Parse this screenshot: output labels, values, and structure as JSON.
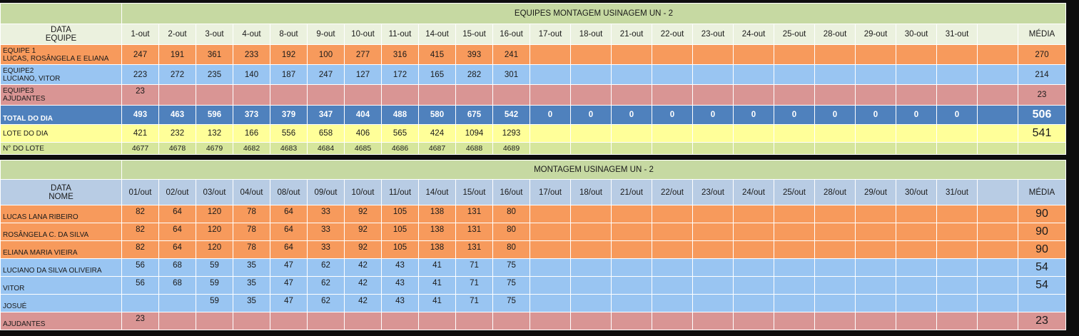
{
  "table1": {
    "title": "EQUIPES MONTAGEM USINAGEM UN - 2",
    "header_label": [
      "DATA",
      "EQUIPE"
    ],
    "dates": [
      "1-out",
      "2-out",
      "3-out",
      "4-out",
      "8-out",
      "9-out",
      "10-out",
      "11-out",
      "14-out",
      "15-out",
      "16-out",
      "17-out",
      "18-out",
      "21-out",
      "22-out",
      "23-out",
      "24-out",
      "25-out",
      "28-out",
      "29-out",
      "30-out",
      "31-out",
      ""
    ],
    "avg_label": "MÉDIA",
    "rows": [
      {
        "label": [
          "EQUIPE 1",
          "LUCAS, ROSÂNGELA E ELIANA"
        ],
        "values": [
          "247",
          "191",
          "361",
          "233",
          "192",
          "100",
          "277",
          "316",
          "415",
          "393",
          "241",
          "",
          "",
          "",
          "",
          "",
          "",
          "",
          "",
          "",
          "",
          "",
          ""
        ],
        "avg": "270"
      },
      {
        "label": [
          "EQUIPE2",
          "LUCIANO, VITOR"
        ],
        "values": [
          "223",
          "272",
          "235",
          "140",
          "187",
          "247",
          "127",
          "172",
          "165",
          "282",
          "301",
          "",
          "",
          "",
          "",
          "",
          "",
          "",
          "",
          "",
          "",
          "",
          ""
        ],
        "avg": "214"
      },
      {
        "label": [
          "EQUIPE3",
          "AJUDANTES"
        ],
        "values": [
          "23",
          "",
          "",
          "",
          "",
          "",
          "",
          "",
          "",
          "",
          "",
          "",
          "",
          "",
          "",
          "",
          "",
          "",
          "",
          "",
          "",
          "",
          ""
        ],
        "avg": "23"
      }
    ],
    "total": {
      "label": "TOTAL DO DIA",
      "values": [
        "493",
        "463",
        "596",
        "373",
        "379",
        "347",
        "404",
        "488",
        "580",
        "675",
        "542",
        "0",
        "0",
        "0",
        "0",
        "0",
        "0",
        "0",
        "0",
        "0",
        "0",
        "0",
        ""
      ],
      "avg": "506"
    },
    "lote": {
      "label": "LOTE DO DIA",
      "values": [
        "421",
        "232",
        "132",
        "166",
        "556",
        "658",
        "406",
        "565",
        "424",
        "1094",
        "1293",
        "",
        "",
        "",
        "",
        "",
        "",
        "",
        "",
        "",
        "",
        "",
        ""
      ],
      "avg": "541"
    },
    "n_lote": {
      "label": "N° DO LOTE",
      "values": [
        "4677",
        "4678",
        "4679",
        "4682",
        "4683",
        "4684",
        "4685",
        "4686",
        "4687",
        "4688",
        "4689",
        "",
        "",
        "",
        "",
        "",
        "",
        "",
        "",
        "",
        "",
        "",
        ""
      ],
      "avg": ""
    }
  },
  "table2": {
    "title": "MONTAGEM USINAGEM UN - 2",
    "header_label": [
      "DATA",
      "NOME"
    ],
    "dates": [
      "01/out",
      "02/out",
      "03/out",
      "04/out",
      "08/out",
      "09/out",
      "10/out",
      "11/out",
      "14/out",
      "15/out",
      "16/out",
      "17/out",
      "18/out",
      "21/out",
      "22/out",
      "23/out",
      "24/out",
      "25/out",
      "28/out",
      "29/out",
      "30/out",
      "31/out",
      ""
    ],
    "avg_label": "MÉDIA",
    "rows": [
      {
        "name": "LUCAS LANA RIBEIRO",
        "color": "o",
        "values": [
          "82",
          "64",
          "120",
          "78",
          "64",
          "33",
          "92",
          "105",
          "138",
          "131",
          "80",
          "",
          "",
          "",
          "",
          "",
          "",
          "",
          "",
          "",
          "",
          "",
          ""
        ],
        "avg": "90"
      },
      {
        "name": "ROSÂNGELA C. DA SILVA",
        "color": "o",
        "values": [
          "82",
          "64",
          "120",
          "78",
          "64",
          "33",
          "92",
          "105",
          "138",
          "131",
          "80",
          "",
          "",
          "",
          "",
          "",
          "",
          "",
          "",
          "",
          "",
          "",
          ""
        ],
        "avg": "90"
      },
      {
        "name": "ELIANA MARIA VIEIRA",
        "color": "o",
        "values": [
          "82",
          "64",
          "120",
          "78",
          "64",
          "33",
          "92",
          "105",
          "138",
          "131",
          "80",
          "",
          "",
          "",
          "",
          "",
          "",
          "",
          "",
          "",
          "",
          "",
          ""
        ],
        "avg": "90"
      },
      {
        "name": "LUCIANO DA SILVA OLIVEIRA",
        "color": "b",
        "values": [
          "56",
          "68",
          "59",
          "35",
          "47",
          "62",
          "42",
          "43",
          "41",
          "71",
          "75",
          "",
          "",
          "",
          "",
          "",
          "",
          "",
          "",
          "",
          "",
          "",
          ""
        ],
        "avg": "54"
      },
      {
        "name": "VITOR",
        "color": "b",
        "values": [
          "56",
          "68",
          "59",
          "35",
          "47",
          "62",
          "42",
          "43",
          "41",
          "71",
          "75",
          "",
          "",
          "",
          "",
          "",
          "",
          "",
          "",
          "",
          "",
          "",
          ""
        ],
        "avg": "54"
      },
      {
        "name": "JOSUÉ",
        "color": "b",
        "values": [
          "",
          "",
          "59",
          "35",
          "47",
          "62",
          "42",
          "43",
          "41",
          "71",
          "75",
          "",
          "",
          "",
          "",
          "",
          "",
          "",
          "",
          "",
          "",
          "",
          ""
        ],
        "avg": ""
      },
      {
        "name": "AJUDANTES",
        "color": "r",
        "values": [
          "23",
          "",
          "",
          "",
          "",
          "",
          "",
          "",
          "",
          "",
          "",
          "",
          "",
          "",
          "",
          "",
          "",
          "",
          "",
          "",
          "",
          "",
          ""
        ],
        "avg": "23"
      }
    ]
  },
  "colors": {
    "orange": "#f79a5c",
    "blue": "#99c5f2",
    "rose": "#d99594",
    "total_blue": "#4f81bd",
    "yellow": "#ffff99",
    "green": "#d6e69c",
    "title_green": "#c6d9a2",
    "header2_blue": "#b8cce4"
  }
}
